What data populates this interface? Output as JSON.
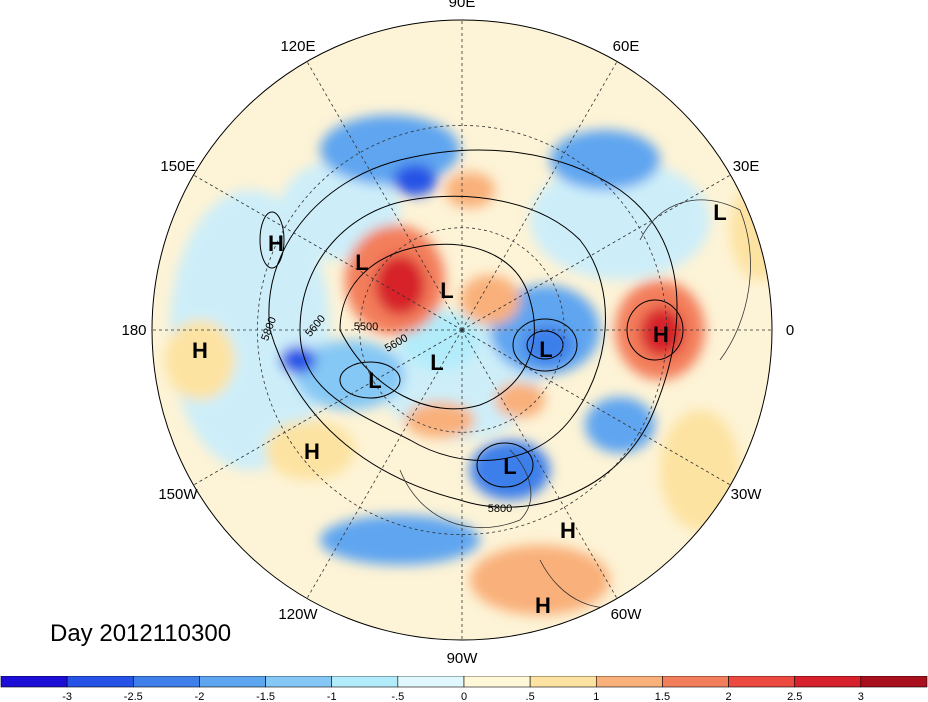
{
  "title": "Day 2012110300",
  "longitude_labels": [
    {
      "text": "90E",
      "lon": 90
    },
    {
      "text": "60E",
      "lon": 60
    },
    {
      "text": "30E",
      "lon": 30
    },
    {
      "text": "0",
      "lon": 0
    },
    {
      "text": "30W",
      "lon": -30
    },
    {
      "text": "60W",
      "lon": -60
    },
    {
      "text": "90W",
      "lon": -90
    },
    {
      "text": "120W",
      "lon": -120
    },
    {
      "text": "150W",
      "lon": -150
    },
    {
      "text": "180",
      "lon": 180
    },
    {
      "text": "150E",
      "lon": 150
    },
    {
      "text": "120E",
      "lon": 120
    }
  ],
  "pressure_centers": [
    {
      "type": "H",
      "label": "H"
    },
    {
      "type": "H",
      "label": "H"
    },
    {
      "type": "H",
      "label": "H"
    },
    {
      "type": "H",
      "label": "H"
    },
    {
      "type": "H",
      "label": "H"
    },
    {
      "type": "H",
      "label": "H"
    },
    {
      "type": "L",
      "label": "L"
    },
    {
      "type": "L",
      "label": "L"
    },
    {
      "type": "L",
      "label": "L"
    },
    {
      "type": "L",
      "label": "L"
    },
    {
      "type": "L",
      "label": "L"
    },
    {
      "type": "L",
      "label": "L"
    },
    {
      "type": "L",
      "label": "L"
    }
  ],
  "contour_labels": [
    "5800",
    "5600",
    "5500",
    "5600",
    "5800"
  ],
  "colorbar": {
    "ticks": [
      "-3",
      "-2.5",
      "-2",
      "-1.5",
      "-1",
      "-.5",
      "0",
      ".5",
      "1",
      "1.5",
      "2",
      "2.5",
      "3"
    ],
    "colors": [
      "#1c0ed6",
      "#2653e6",
      "#3e7fea",
      "#5ea5f0",
      "#85c8f5",
      "#b2ecfb",
      "#e0f8fd",
      "#fff8d8",
      "#fde3a2",
      "#f9b07a",
      "#f37e5c",
      "#ec4a41",
      "#d7212c",
      "#a8101d"
    ]
  }
}
